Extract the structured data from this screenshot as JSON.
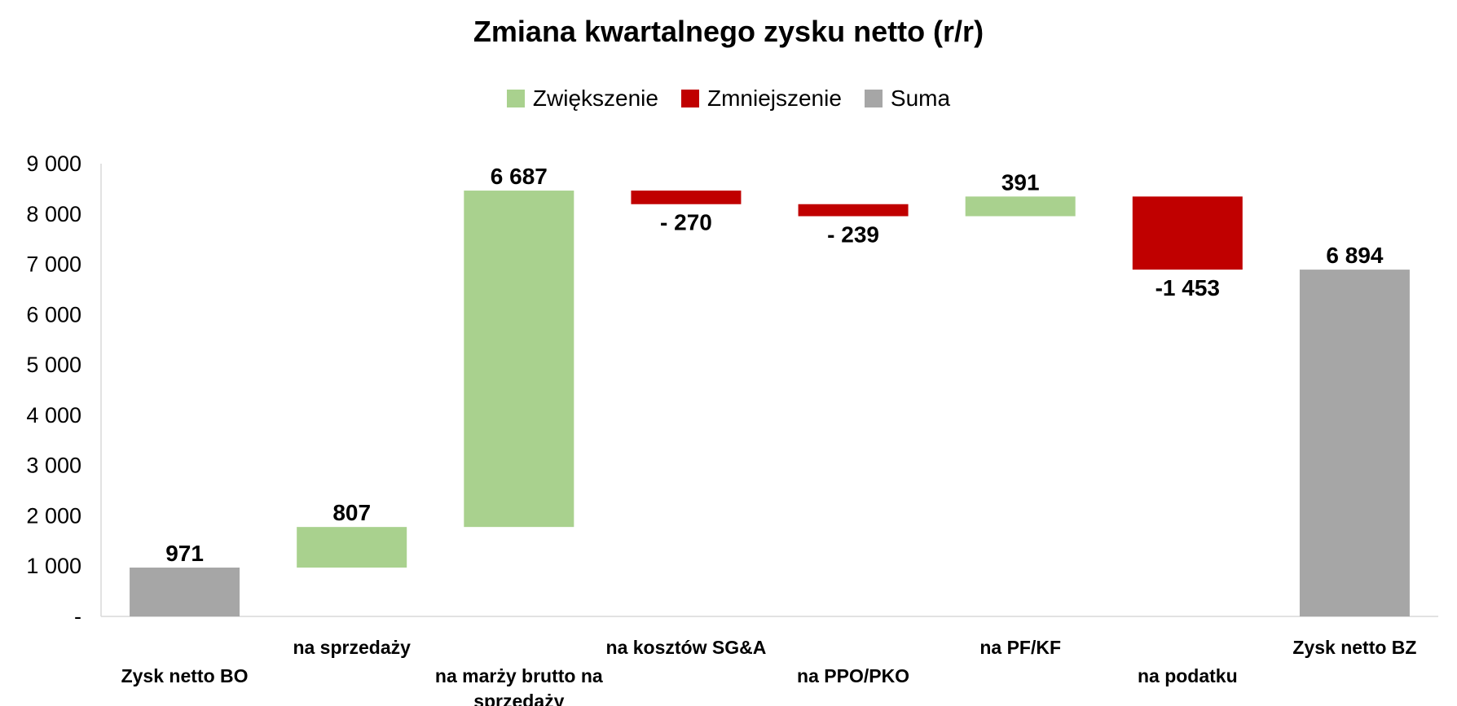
{
  "chart_data": {
    "type": "bar",
    "subtype": "waterfall",
    "title": "Zmiana kwartalnego zysku netto (r/r)",
    "legend": [
      {
        "name": "Zwiększenie",
        "color": "#a9d18e"
      },
      {
        "name": "Zmniejszenie",
        "color": "#c00000"
      },
      {
        "name": "Suma",
        "color": "#a6a6a6"
      }
    ],
    "legend_position": "top",
    "ylim": [
      0,
      9000
    ],
    "y_ticks": [
      {
        "value": 0,
        "label": "-"
      },
      {
        "value": 1000,
        "label": "1 000"
      },
      {
        "value": 2000,
        "label": "2 000"
      },
      {
        "value": 3000,
        "label": "3 000"
      },
      {
        "value": 4000,
        "label": "4 000"
      },
      {
        "value": 5000,
        "label": "5 000"
      },
      {
        "value": 6000,
        "label": "6 000"
      },
      {
        "value": 7000,
        "label": "7 000"
      },
      {
        "value": 8000,
        "label": "8 000"
      },
      {
        "value": 9000,
        "label": "9 000"
      }
    ],
    "grid": false,
    "categories": [
      {
        "label": [
          "Zysk netto BO"
        ],
        "kind": "total",
        "start": 0,
        "end": 971,
        "data_label": "971"
      },
      {
        "label": [
          "na sprzedaży"
        ],
        "kind": "increase",
        "start": 971,
        "end": 1778,
        "data_label": "807"
      },
      {
        "label": [
          "na marży brutto na",
          "sprzedaży"
        ],
        "kind": "increase",
        "start": 1778,
        "end": 8465,
        "data_label": "6 687"
      },
      {
        "label": [
          "na kosztów SG&A"
        ],
        "kind": "decrease",
        "start": 8465,
        "end": 8195,
        "data_label": "- 270"
      },
      {
        "label": [
          "na PPO/PKO"
        ],
        "kind": "decrease",
        "start": 8195,
        "end": 7956,
        "data_label": "- 239"
      },
      {
        "label": [
          "na PF/KF"
        ],
        "kind": "increase",
        "start": 7956,
        "end": 8347,
        "data_label": "391"
      },
      {
        "label": [
          "na podatku"
        ],
        "kind": "decrease",
        "start": 8347,
        "end": 6894,
        "data_label": "-1 453"
      },
      {
        "label": [
          "Zysk netto BZ"
        ],
        "kind": "total",
        "start": 0,
        "end": 6894,
        "data_label": "6 894"
      }
    ]
  }
}
